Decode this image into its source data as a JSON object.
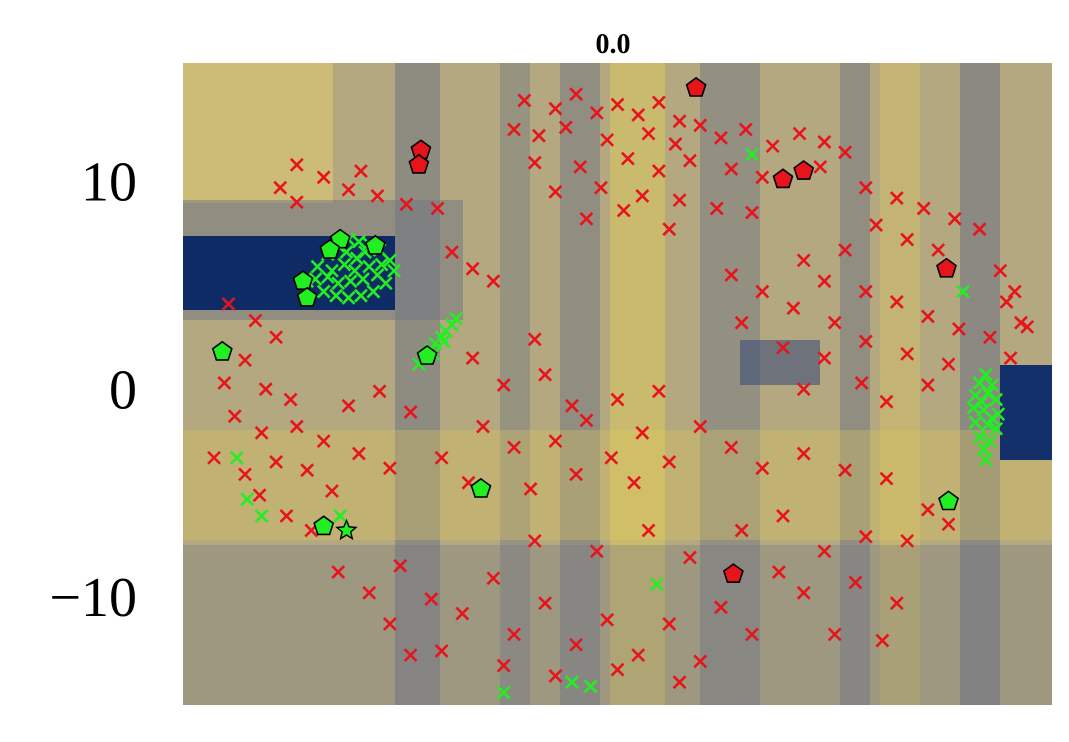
{
  "chart_data": {
    "type": "scatter",
    "title": "0.0",
    "xlim": [
      -21,
      21
    ],
    "ylim": [
      -14.9,
      16
    ],
    "yticks": [
      {
        "value": -10,
        "label": "−10"
      },
      0,
      10
    ],
    "series": [
      {
        "color": "#e8141c",
        "marker": "x",
        "x": [
          -4.5,
          -3,
          -2,
          -1,
          0,
          1,
          2,
          3,
          -5,
          -3.8,
          -2.5,
          -0.5,
          1.5,
          2.8,
          4,
          5,
          6.2,
          7.5,
          8.8,
          10,
          11,
          -4,
          -1.8,
          0.5,
          2,
          3.5,
          5.5,
          7,
          9.8,
          -3,
          -0.8,
          1.2,
          3,
          4.8,
          6.5,
          -1.5,
          0.3,
          2.5,
          -16.3,
          -15.5,
          -14.2,
          -13,
          -11.6,
          -10.2,
          -8.7,
          -15.5,
          -12.4,
          -8,
          -7,
          -6,
          12,
          13.5,
          14.8,
          16.3,
          17.5,
          12.5,
          14,
          15.5,
          18.5,
          19.2,
          18.8,
          19.8,
          11,
          9,
          10,
          12,
          13.5,
          15,
          16.5,
          18,
          19.5,
          5.5,
          7,
          8.5,
          10.5,
          12,
          14,
          16,
          6,
          8,
          10,
          11.8,
          9,
          13,
          15,
          19,
          -18.8,
          -17.5,
          -16.5,
          -18,
          -19,
          -17,
          -15.8,
          -18.5,
          -17.2,
          -15.5,
          -19.5,
          -18,
          -16.5,
          -15,
          -17.3,
          -14.2,
          -13,
          -11.5,
          -10,
          -12.5,
          -11,
          -13.8,
          -16,
          -14.8,
          -7,
          -5.5,
          -4,
          -3.5,
          -2.2,
          -6.5,
          -5,
          -3,
          -1.5,
          0,
          1.2,
          -0.3,
          2,
          -8.5,
          -7.2,
          -4.2,
          -2,
          0.8,
          2.5,
          4,
          5.5,
          7,
          9,
          11,
          13,
          15,
          -13.5,
          -12,
          -10.5,
          -9,
          -11,
          -7.5,
          -6,
          -5,
          -3.5,
          -2,
          -0.5,
          1,
          2.5,
          4,
          5,
          6.5,
          3,
          0,
          -3,
          -5.5,
          -8.5,
          -10,
          -4,
          -1,
          1.5,
          3.5,
          6,
          8,
          10,
          12,
          14,
          16,
          9,
          11.5,
          13.5,
          10.5,
          12.8,
          7.8
        ],
        "values": [
          14.2,
          13.8,
          14.5,
          13.6,
          14,
          13.5,
          14.1,
          13.2,
          12.8,
          12.5,
          12.9,
          12.3,
          12.6,
          12.1,
          13,
          12.4,
          12.8,
          12,
          12.6,
          12.2,
          11.7,
          11.2,
          11,
          11.4,
          10.8,
          11.3,
          10.9,
          10.5,
          11,
          9.8,
          10,
          9.6,
          9.4,
          9,
          8.8,
          8.5,
          8.9,
          8,
          10,
          11.1,
          10.5,
          9.9,
          9.6,
          9.2,
          9,
          9.3,
          10.8,
          6.9,
          6.1,
          5.5,
          10,
          9.5,
          9,
          8.5,
          8,
          8.2,
          7.5,
          7,
          6,
          5,
          4.5,
          3.3,
          7,
          6.5,
          5.5,
          5,
          4.5,
          3.8,
          3.2,
          2.8,
          3.5,
          5.8,
          5,
          4.2,
          3.5,
          2.6,
          2,
          1.5,
          3.5,
          2.3,
          1.8,
          0.6,
          0.3,
          -0.3,
          0.5,
          1.8,
          4.4,
          3.6,
          2.8,
          1.7,
          0.6,
          0.3,
          -0.2,
          -1,
          -1.8,
          -1.5,
          -3,
          -3.8,
          -3.2,
          -3.6,
          -4.8,
          -2.2,
          -0.5,
          0.2,
          -0.8,
          -2.8,
          -3.5,
          -4.6,
          -5.8,
          -6.5,
          1.8,
          0.5,
          2.7,
          1,
          -0.5,
          -1.5,
          -2.5,
          -2.2,
          -1.2,
          -0.2,
          -1.8,
          -3,
          0.2,
          -3,
          -4.2,
          -4.5,
          -3.8,
          -4.2,
          -3.2,
          -1.5,
          -2.5,
          -3.5,
          -2.8,
          -3.6,
          -4,
          -5.5,
          -8.5,
          -9.5,
          -8.2,
          -9.8,
          -11,
          -10.5,
          -8.8,
          -11.5,
          -10,
          -12,
          -10.8,
          -12.5,
          -11,
          -12.8,
          -10.2,
          -11.5,
          -13.8,
          -13.2,
          -13.5,
          -13,
          -12.3,
          -12.5,
          -7,
          -7.5,
          -6.5,
          -7.8,
          -6.5,
          -5.8,
          -7.5,
          -6.8,
          -7,
          -6.2,
          -9.5,
          -9,
          -10,
          -11.5,
          -11.8,
          -8.5
        ]
      },
      {
        "color": "#22ee22",
        "marker": "x",
        "x": [
          -15,
          -14.5,
          -14,
          -13.5,
          -13,
          -12.5,
          -12,
          -11.5,
          -11,
          -10.8,
          -11.2,
          -11.8,
          -12.4,
          -13,
          -13.6,
          -14.2,
          -14.6,
          -13.8,
          -13.2,
          -12.6,
          -12,
          -11.6,
          -12.3,
          -12.9,
          -13.5,
          -14,
          -13.1,
          -12.2,
          -11.4,
          -12.7,
          -9.6,
          -9.3,
          -9,
          -8.8,
          -8.5,
          -8.3,
          -8,
          -7.8,
          -8.9,
          -8.4,
          17.8,
          17.5,
          18.1,
          17.3,
          17.9,
          18.3,
          17.2,
          17.7,
          18.4,
          17.3,
          17.9,
          18.3,
          17.5,
          18,
          17.7,
          17.8,
          17.6,
          18.1,
          -18.4,
          -17.9,
          -17.2,
          6.5,
          16.7,
          1.9,
          -5.5,
          -2.2,
          -1.3,
          -13.4
        ],
        "values": [
          5.5,
          6.2,
          6.8,
          7.2,
          7.5,
          7.4,
          7.3,
          7,
          6.5,
          6,
          5.4,
          5,
          4.8,
          4.7,
          4.8,
          5,
          5.6,
          6,
          6.3,
          6.6,
          6.2,
          5.8,
          5.6,
          5.5,
          5.4,
          5.7,
          6.9,
          6.9,
          6.3,
          6,
          1.5,
          1.9,
          2.2,
          2.5,
          2.8,
          3.1,
          3.4,
          3.7,
          2,
          2.6,
          1,
          0.6,
          0.5,
          0,
          0.1,
          -0.2,
          -0.6,
          -0.7,
          -0.9,
          -1.3,
          -1.4,
          -1.6,
          -2,
          -2.2,
          -2.6,
          -3.1,
          -0.3,
          -1.1,
          -3,
          -5,
          -5.8,
          11.6,
          5,
          -9.1,
          -14.3,
          -13.8,
          -14,
          -5.8
        ]
      },
      {
        "color": "#e8141c",
        "marker": "pentagon",
        "x": [
          3.8,
          -9.5,
          -9.6,
          8,
          9,
          15.9,
          5.6
        ],
        "values": [
          14.8,
          11.8,
          11.1,
          10.4,
          10.8,
          6.1,
          -8.6
        ]
      },
      {
        "color": "#22ee22",
        "marker": "pentagon",
        "x": [
          -13.4,
          -13.9,
          -11.7,
          -15.2,
          -15,
          -19.1,
          -9.2,
          -6.6,
          -14.2,
          16
        ],
        "values": [
          7.5,
          7,
          7.2,
          5.5,
          4.7,
          2.1,
          1.9,
          -4.5,
          -6.3,
          -5.1
        ]
      },
      {
        "color": "#22ee22",
        "marker": "star",
        "x": [
          -13.1
        ],
        "values": [
          -6.5
        ]
      }
    ]
  }
}
